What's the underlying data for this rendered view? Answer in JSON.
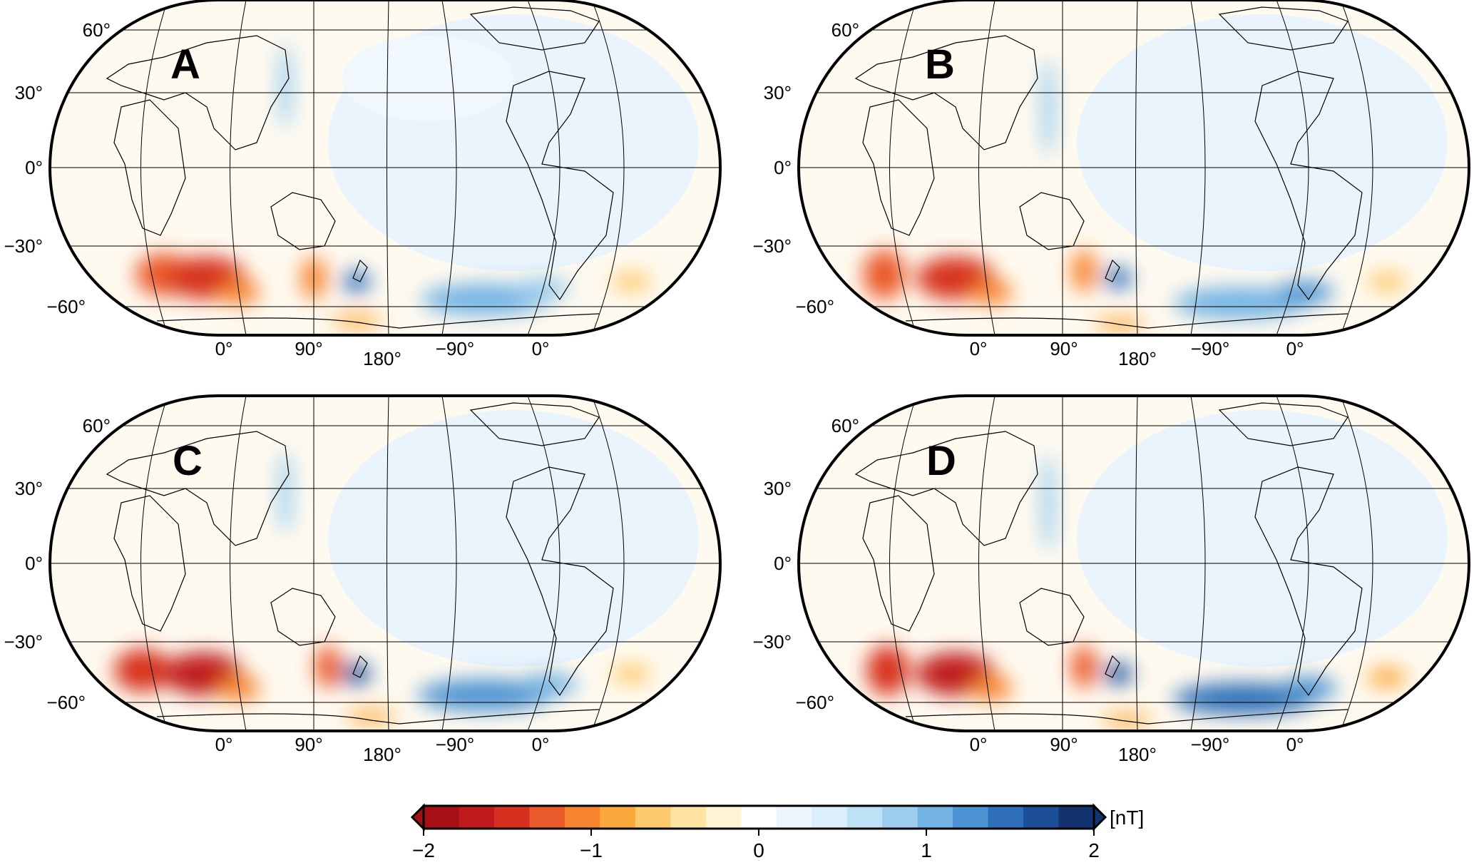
{
  "panels": [
    {
      "letter": "A"
    },
    {
      "letter": "B"
    },
    {
      "letter": "C"
    },
    {
      "letter": "D"
    }
  ],
  "lat_labels": [
    "60°",
    "30°",
    "0°",
    "−30°",
    "−60°"
  ],
  "lon_labels": [
    "0°",
    "90°",
    "180°",
    "−90°",
    "0°"
  ],
  "colorbar": {
    "unit": "[nT]",
    "tick_labels": [
      "−2",
      "−1",
      "0",
      "1",
      "2"
    ],
    "colors": [
      "#a50f15",
      "#c01a1d",
      "#d7301f",
      "#ea5a2a",
      "#f78530",
      "#fba93d",
      "#fdca6e",
      "#fee3a1",
      "#fff5d6",
      "#ffffff",
      "#eef6fd",
      "#dbeefb",
      "#bfe1f6",
      "#9ccdee",
      "#72b3e3",
      "#4b93d2",
      "#2f6fb9",
      "#1d4f98",
      "#13336f"
    ],
    "range": [
      -2,
      2
    ]
  },
  "anomaly_colors": {
    "strong_negative": "#c01a1d",
    "negative": "#f08a3c",
    "weak_negative": "#fde3b0",
    "weak_positive": "#dbeefb",
    "positive": "#6aaee0",
    "strong_positive": "#1d4f98"
  }
}
